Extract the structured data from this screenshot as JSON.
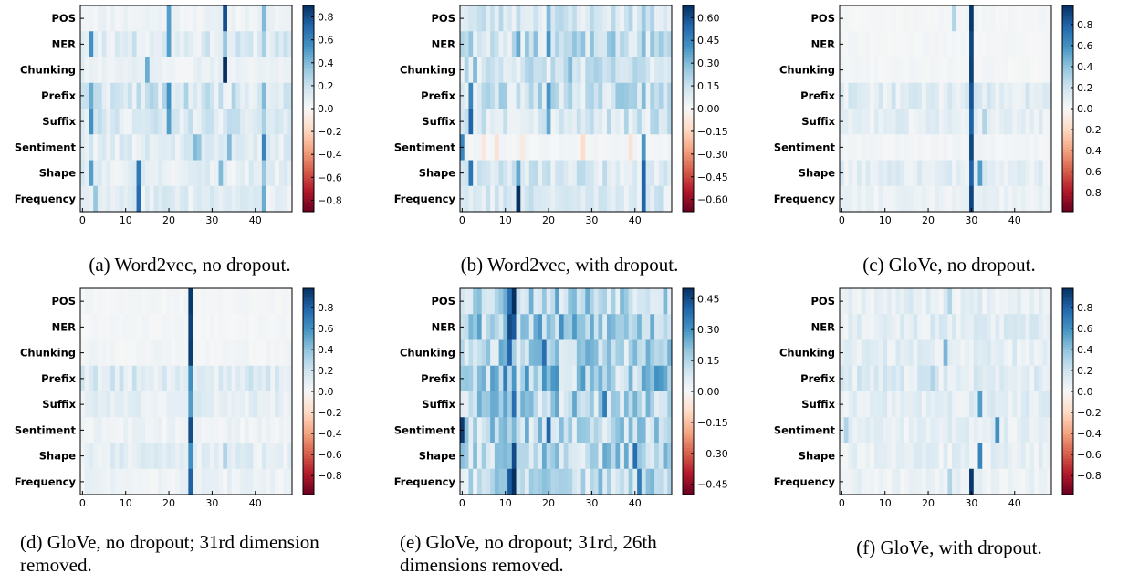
{
  "colorscale": {
    "negative": "#67001f",
    "zero": "#f7f7f7",
    "positive": "#053061"
  },
  "panels": [
    {
      "id": "a",
      "caption": "(a) Word2vec, no dropout.",
      "rows": [
        "POS",
        "NER",
        "Chunking",
        "Prefix",
        "Suffix",
        "Sentiment",
        "Shape",
        "Frequency"
      ],
      "xticks": [
        0,
        10,
        20,
        30,
        40
      ],
      "n_dims": 49,
      "vmax": 0.9,
      "colorbar_ticks": [
        "0.8",
        "0.6",
        "0.4",
        "0.2",
        "0.0",
        "−0.2",
        "−0.4",
        "−0.6",
        "−0.8"
      ],
      "colorbar_values": [
        0.8,
        0.6,
        0.4,
        0.2,
        0,
        -0.2,
        -0.4,
        -0.6,
        -0.8
      ],
      "base": 0.07,
      "row_base": [
        0.05,
        0.12,
        0.06,
        0.16,
        0.13,
        0.1,
        0.09,
        0.1
      ],
      "seed": 11,
      "hot": [
        {
          "r": 0,
          "c": 20,
          "v": 0.5
        },
        {
          "r": 0,
          "c": 33,
          "v": 0.8
        },
        {
          "r": 0,
          "c": 42,
          "v": 0.4
        },
        {
          "r": 1,
          "c": 2,
          "v": 0.55
        },
        {
          "r": 1,
          "c": 20,
          "v": 0.5
        },
        {
          "r": 1,
          "c": 33,
          "v": 0.35
        },
        {
          "r": 1,
          "c": 42,
          "v": 0.3
        },
        {
          "r": 2,
          "c": 15,
          "v": 0.45
        },
        {
          "r": 2,
          "c": 33,
          "v": 0.9
        },
        {
          "r": 3,
          "c": 2,
          "v": 0.45
        },
        {
          "r": 3,
          "c": 20,
          "v": 0.55
        },
        {
          "r": 3,
          "c": 42,
          "v": 0.4
        },
        {
          "r": 4,
          "c": 2,
          "v": 0.55
        },
        {
          "r": 4,
          "c": 20,
          "v": 0.5
        },
        {
          "r": 4,
          "c": 42,
          "v": 0.3
        },
        {
          "r": 5,
          "c": 26,
          "v": 0.4
        },
        {
          "r": 5,
          "c": 27,
          "v": 0.35
        },
        {
          "r": 5,
          "c": 34,
          "v": 0.4
        },
        {
          "r": 5,
          "c": 42,
          "v": 0.6
        },
        {
          "r": 6,
          "c": 2,
          "v": 0.5
        },
        {
          "r": 6,
          "c": 13,
          "v": 0.65
        },
        {
          "r": 6,
          "c": 32,
          "v": 0.4
        },
        {
          "r": 6,
          "c": 42,
          "v": 0.35
        },
        {
          "r": 7,
          "c": 3,
          "v": 0.35
        },
        {
          "r": 7,
          "c": 13,
          "v": 0.7
        },
        {
          "r": 7,
          "c": 42,
          "v": 0.45
        }
      ]
    },
    {
      "id": "b",
      "caption": "(b) Word2vec, with dropout.",
      "rows": [
        "POS",
        "NER",
        "Chunking",
        "Prefix",
        "Suffix",
        "Sentiment",
        "Shape",
        "Frequency"
      ],
      "xticks": [
        0,
        10,
        20,
        30,
        40
      ],
      "n_dims": 49,
      "vmax": 0.68,
      "colorbar_ticks": [
        "0.60",
        "0.45",
        "0.30",
        "0.15",
        "0.00",
        "−0.15",
        "−0.30",
        "−0.45",
        "−0.60"
      ],
      "colorbar_values": [
        0.6,
        0.45,
        0.3,
        0.15,
        0,
        -0.15,
        -0.3,
        -0.45,
        -0.6
      ],
      "base": 0.09,
      "row_base": [
        0.12,
        0.16,
        0.13,
        0.15,
        0.12,
        0.02,
        0.11,
        0.1
      ],
      "seed": 23,
      "hot": [
        {
          "r": 0,
          "c": 20,
          "v": 0.3
        },
        {
          "r": 0,
          "c": 42,
          "v": 0.25
        },
        {
          "r": 1,
          "c": 13,
          "v": 0.35
        },
        {
          "r": 1,
          "c": 20,
          "v": 0.4
        },
        {
          "r": 1,
          "c": 42,
          "v": 0.3
        },
        {
          "r": 2,
          "c": 3,
          "v": 0.3
        },
        {
          "r": 2,
          "c": 25,
          "v": 0.3
        },
        {
          "r": 3,
          "c": 2,
          "v": 0.45
        },
        {
          "r": 3,
          "c": 20,
          "v": 0.4
        },
        {
          "r": 3,
          "c": 42,
          "v": 0.3
        },
        {
          "r": 4,
          "c": 2,
          "v": 0.55
        },
        {
          "r": 4,
          "c": 20,
          "v": 0.35
        },
        {
          "r": 5,
          "c": 0,
          "v": 0.45
        },
        {
          "r": 5,
          "c": 5,
          "v": -0.08
        },
        {
          "r": 5,
          "c": 8,
          "v": -0.1
        },
        {
          "r": 5,
          "c": 14,
          "v": -0.07
        },
        {
          "r": 5,
          "c": 28,
          "v": -0.12
        },
        {
          "r": 5,
          "c": 39,
          "v": -0.1
        },
        {
          "r": 5,
          "c": 42,
          "v": 0.4
        },
        {
          "r": 6,
          "c": 2,
          "v": 0.5
        },
        {
          "r": 6,
          "c": 13,
          "v": 0.35
        },
        {
          "r": 6,
          "c": 42,
          "v": 0.55
        },
        {
          "r": 7,
          "c": 13,
          "v": 0.68
        },
        {
          "r": 7,
          "c": 42,
          "v": 0.55
        }
      ]
    },
    {
      "id": "c",
      "caption": "(c) GloVe, no dropout.",
      "rows": [
        "POS",
        "NER",
        "Chunking",
        "Prefix",
        "Suffix",
        "Sentiment",
        "Shape",
        "Frequency"
      ],
      "xticks": [
        0,
        10,
        20,
        30,
        40
      ],
      "n_dims": 49,
      "vmax": 0.98,
      "colorbar_ticks": [
        "0.8",
        "0.6",
        "0.4",
        "0.2",
        "0.0",
        "−0.2",
        "−0.4",
        "−0.6",
        "−0.8"
      ],
      "colorbar_values": [
        0.8,
        0.6,
        0.4,
        0.2,
        0,
        -0.2,
        -0.4,
        -0.6,
        -0.8
      ],
      "base": 0.05,
      "row_base": [
        0.02,
        0.02,
        0.02,
        0.12,
        0.09,
        0.03,
        0.1,
        0.06
      ],
      "seed": 37,
      "hot": [
        {
          "r": 0,
          "c": 26,
          "v": 0.3
        },
        {
          "r": 0,
          "c": 30,
          "v": 0.95
        },
        {
          "r": 1,
          "c": 30,
          "v": 0.9
        },
        {
          "r": 2,
          "c": 30,
          "v": 0.92
        },
        {
          "r": 3,
          "c": 30,
          "v": 0.85
        },
        {
          "r": 4,
          "c": 30,
          "v": 0.8
        },
        {
          "r": 4,
          "c": 33,
          "v": 0.3
        },
        {
          "r": 5,
          "c": 30,
          "v": 0.9
        },
        {
          "r": 6,
          "c": 30,
          "v": 0.8
        },
        {
          "r": 6,
          "c": 32,
          "v": 0.55
        },
        {
          "r": 7,
          "c": 30,
          "v": 0.9
        }
      ]
    },
    {
      "id": "d",
      "caption": "(d) GloVe, no dropout; 31rd dimension removed.",
      "rows": [
        "POS",
        "NER",
        "Chunking",
        "Prefix",
        "Suffix",
        "Sentiment",
        "Shape",
        "Frequency"
      ],
      "xticks": [
        0,
        10,
        20,
        30,
        40
      ],
      "n_dims": 49,
      "vmax": 0.98,
      "colorbar_ticks": [
        "0.8",
        "0.6",
        "0.4",
        "0.2",
        "0.0",
        "−0.2",
        "−0.4",
        "−0.6",
        "−0.8"
      ],
      "colorbar_values": [
        0.8,
        0.6,
        0.4,
        0.2,
        0,
        -0.2,
        -0.4,
        -0.6,
        -0.8
      ],
      "base": 0.05,
      "row_base": [
        0.02,
        0.02,
        0.03,
        0.13,
        0.1,
        0.05,
        0.1,
        0.06
      ],
      "seed": 41,
      "hot": [
        {
          "r": 0,
          "c": 25,
          "v": 0.95
        },
        {
          "r": 1,
          "c": 25,
          "v": 0.92
        },
        {
          "r": 2,
          "c": 25,
          "v": 0.93
        },
        {
          "r": 3,
          "c": 25,
          "v": 0.6
        },
        {
          "r": 4,
          "c": 25,
          "v": 0.55
        },
        {
          "r": 5,
          "c": 25,
          "v": 0.88
        },
        {
          "r": 6,
          "c": 25,
          "v": 0.6
        },
        {
          "r": 6,
          "c": 33,
          "v": 0.3
        },
        {
          "r": 7,
          "c": 25,
          "v": 0.8
        }
      ]
    },
    {
      "id": "e",
      "caption": "(e) GloVe, no dropout; 31rd, 26th dimensions removed.",
      "rows": [
        "POS",
        "NER",
        "Chunking",
        "Prefix",
        "Suffix",
        "Sentiment",
        "Shape",
        "Frequency"
      ],
      "xticks": [
        0,
        10,
        20,
        30,
        40
      ],
      "n_dims": 49,
      "vmax": 0.5,
      "colorbar_ticks": [
        "0.45",
        "0.30",
        "0.15",
        "0.00",
        "−0.15",
        "−0.30",
        "−0.45"
      ],
      "colorbar_values": [
        0.45,
        0.3,
        0.15,
        0,
        -0.15,
        -0.3,
        -0.45
      ],
      "base": 0.16,
      "row_base": [
        0.16,
        0.17,
        0.15,
        0.17,
        0.15,
        0.14,
        0.15,
        0.13
      ],
      "seed": 53,
      "hot": [
        {
          "r": 0,
          "c": 12,
          "v": 0.5
        },
        {
          "r": 0,
          "c": 11,
          "v": 0.38
        },
        {
          "r": 1,
          "c": 11,
          "v": 0.45
        },
        {
          "r": 1,
          "c": 12,
          "v": 0.42
        },
        {
          "r": 2,
          "c": 11,
          "v": 0.4
        },
        {
          "r": 2,
          "c": 19,
          "v": 0.38
        },
        {
          "r": 3,
          "c": 10,
          "v": 0.35
        },
        {
          "r": 3,
          "c": 19,
          "v": 0.3
        },
        {
          "r": 4,
          "c": 12,
          "v": 0.38
        },
        {
          "r": 4,
          "c": 33,
          "v": 0.35
        },
        {
          "r": 5,
          "c": 0,
          "v": 0.48
        },
        {
          "r": 5,
          "c": 20,
          "v": 0.4
        },
        {
          "r": 6,
          "c": 12,
          "v": 0.45
        },
        {
          "r": 6,
          "c": 40,
          "v": 0.38
        },
        {
          "r": 7,
          "c": 12,
          "v": 0.5
        },
        {
          "r": 7,
          "c": 11,
          "v": 0.42
        },
        {
          "r": 7,
          "c": 41,
          "v": 0.35
        }
      ]
    },
    {
      "id": "f",
      "caption": "(f) GloVe, with dropout.",
      "rows": [
        "POS",
        "NER",
        "Chunking",
        "Prefix",
        "Suffix",
        "Sentiment",
        "Shape",
        "Frequency"
      ],
      "xticks": [
        0,
        10,
        20,
        30,
        40
      ],
      "n_dims": 49,
      "vmax": 0.98,
      "colorbar_ticks": [
        "0.8",
        "0.6",
        "0.4",
        "0.2",
        "0.0",
        "−0.2",
        "−0.4",
        "−0.6",
        "−0.8"
      ],
      "colorbar_values": [
        0.8,
        0.6,
        0.4,
        0.2,
        0,
        -0.2,
        -0.4,
        -0.6,
        -0.8
      ],
      "base": 0.09,
      "row_base": [
        0.1,
        0.11,
        0.1,
        0.12,
        0.1,
        0.09,
        0.09,
        0.07
      ],
      "seed": 67,
      "hot": [
        {
          "r": 0,
          "c": 25,
          "v": 0.3
        },
        {
          "r": 2,
          "c": 24,
          "v": 0.45
        },
        {
          "r": 3,
          "c": 21,
          "v": 0.3
        },
        {
          "r": 4,
          "c": 32,
          "v": 0.55
        },
        {
          "r": 5,
          "c": 36,
          "v": 0.6
        },
        {
          "r": 5,
          "c": 1,
          "v": 0.3
        },
        {
          "r": 6,
          "c": 32,
          "v": 0.65
        },
        {
          "r": 7,
          "c": 30,
          "v": 0.95
        },
        {
          "r": 7,
          "c": 25,
          "v": 0.3
        }
      ]
    }
  ]
}
